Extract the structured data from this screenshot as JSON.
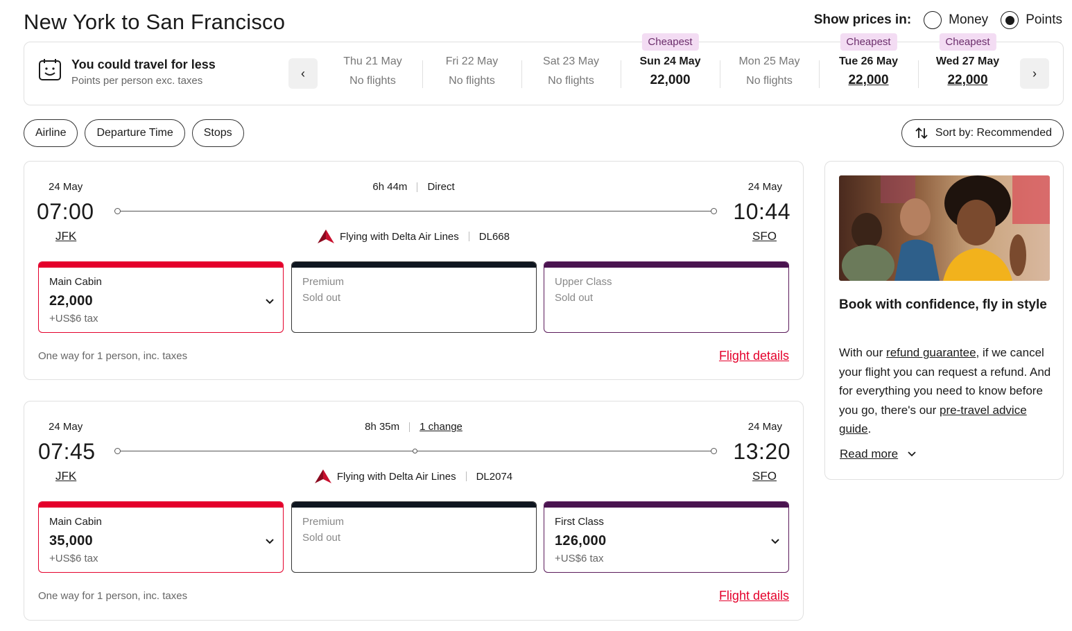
{
  "header": {
    "title": "New York to San Francisco",
    "price_label": "Show prices in:",
    "money_label": "Money",
    "points_label": "Points",
    "selected": "Points"
  },
  "date_strip": {
    "promo_title": "You could travel for less",
    "promo_subtitle": "Points per person exc. taxes",
    "prev_icon": "‹",
    "next_icon": "›",
    "cheapest_label": "Cheapest",
    "days": [
      {
        "date": "Thu 21 May",
        "value": "No flights"
      },
      {
        "date": "Fri 22 May",
        "value": "No flights"
      },
      {
        "date": "Sat 23 May",
        "value": "No flights"
      },
      {
        "date": "Sun 24 May",
        "value": "22,000"
      },
      {
        "date": "Mon 25 May",
        "value": "No flights"
      },
      {
        "date": "Tue 26 May",
        "value": "22,000"
      },
      {
        "date": "Wed 27 May",
        "value": "22,000"
      }
    ]
  },
  "filters": {
    "airline": "Airline",
    "departure_time": "Departure Time",
    "stops": "Stops",
    "sort": "Sort by: Recommended"
  },
  "flights": [
    {
      "dep_date": "24 May",
      "dep_time": "07:00",
      "dep_airport": "JFK",
      "arr_date": "24 May",
      "arr_time": "10:44",
      "arr_airport": "SFO",
      "duration": "6h 44m",
      "stops": "Direct",
      "airline": "Flying with Delta Air Lines",
      "flight_no": "DL668",
      "fares": [
        {
          "name": "Main Cabin",
          "price": "22,000",
          "tax": "+US$6 tax"
        },
        {
          "name": "Premium",
          "status": "Sold out"
        },
        {
          "name": "Upper Class",
          "status": "Sold out"
        }
      ],
      "footer": "One way for 1 person, inc. taxes",
      "details": "Flight details"
    },
    {
      "dep_date": "24 May",
      "dep_time": "07:45",
      "dep_airport": "JFK",
      "arr_date": "24 May",
      "arr_time": "13:20",
      "arr_airport": "SFO",
      "duration": "8h 35m",
      "stops": "1 change",
      "airline": "Flying with Delta Air Lines",
      "flight_no": "DL2074",
      "fares": [
        {
          "name": "Main Cabin",
          "price": "35,000",
          "tax": "+US$6 tax"
        },
        {
          "name": "Premium",
          "status": "Sold out"
        },
        {
          "name": "First Class",
          "price": "126,000",
          "tax": "+US$6 tax"
        }
      ],
      "footer": "One way for 1 person, inc. taxes",
      "details": "Flight details"
    }
  ],
  "side_panel": {
    "heading": "Book with confidence, fly in style",
    "text_1": "With our ",
    "link_1": "refund guarantee",
    "text_2": ", if we cancel your flight you can request a refund. And for everything you need to know before you go, there's our ",
    "link_2": "pre-travel advice guide",
    "text_3": ".",
    "read_more": "Read more"
  },
  "colors": {
    "accent_red": "#e4002b",
    "cheapest_bg": "#f3dcf3",
    "upper_purple": "#4a1450",
    "premium_black": "#0f1620"
  }
}
